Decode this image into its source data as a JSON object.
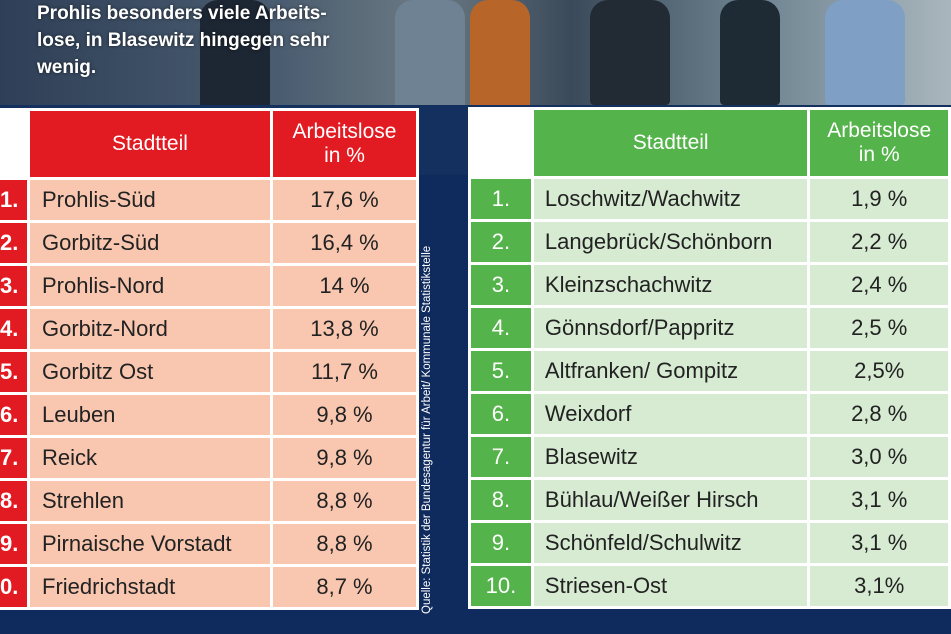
{
  "intro_text": "Prohlis besonders viele Arbeits-\nlose, in Blasewitz hingegen sehr\nwenig.",
  "source_note": "Quelle: Statistik der Bundesagentur für Arbeit/ Kommunale Statistikstelle",
  "colors": {
    "red": "#e21b22",
    "red_light": "#f9c7b0",
    "green": "#54b34a",
    "green_light": "#d6ebd2",
    "navy": "#0f2a5c"
  },
  "left_table": {
    "header_district": "Stadtteil",
    "header_rate": "Arbeitslose\nin %",
    "rows": [
      {
        "rank": "1.",
        "district": "Prohlis-Süd",
        "rate": "17,6 %"
      },
      {
        "rank": "2.",
        "district": "Gorbitz-Süd",
        "rate": "16,4 %"
      },
      {
        "rank": "3.",
        "district": "Prohlis-Nord",
        "rate": "14 %"
      },
      {
        "rank": "4.",
        "district": "Gorbitz-Nord",
        "rate": "13,8 %"
      },
      {
        "rank": "5.",
        "district": "Gorbitz Ost",
        "rate": "11,7 %"
      },
      {
        "rank": "6.",
        "district": "Leuben",
        "rate": "9,8 %"
      },
      {
        "rank": "7.",
        "district": "Reick",
        "rate": "9,8 %"
      },
      {
        "rank": "8.",
        "district": "Strehlen",
        "rate": "8,8 %"
      },
      {
        "rank": "9.",
        "district": "Pirnaische Vorstadt",
        "rate": "8,8 %"
      },
      {
        "rank": "0.",
        "district": "Friedrichstadt",
        "rate": "8,7 %"
      }
    ]
  },
  "right_table": {
    "header_district": "Stadtteil",
    "header_rate": "Arbeitslose\nin %",
    "rows": [
      {
        "rank": "1.",
        "district": "Loschwitz/Wachwitz",
        "rate": "1,9 %"
      },
      {
        "rank": "2.",
        "district": "Langebrück/Schönborn",
        "rate": "2,2 %"
      },
      {
        "rank": "3.",
        "district": "Kleinzschachwitz",
        "rate": "2,4 %"
      },
      {
        "rank": "4.",
        "district": "Gönnsdorf/Pappritz",
        "rate": "2,5 %"
      },
      {
        "rank": "5.",
        "district": "Altfranken/ Gompitz",
        "rate": "2,5%"
      },
      {
        "rank": "6.",
        "district": "Weixdorf",
        "rate": "2,8 %"
      },
      {
        "rank": "7.",
        "district": "Blasewitz",
        "rate": "3,0 %"
      },
      {
        "rank": "8.",
        "district": "Bühlau/Weißer Hirsch",
        "rate": "3,1 %"
      },
      {
        "rank": "9.",
        "district": "Schönfeld/Schulwitz",
        "rate": "3,1 %"
      },
      {
        "rank": "10.",
        "district": "Striesen-Ost",
        "rate": "3,1%"
      }
    ]
  }
}
